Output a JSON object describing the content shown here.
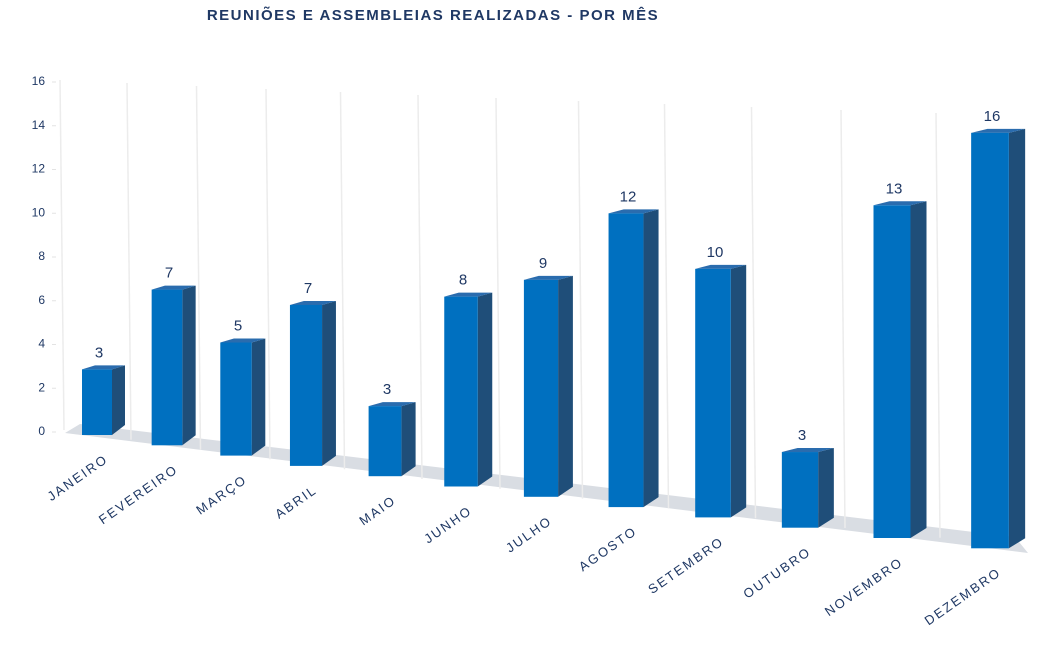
{
  "chart_data": {
    "type": "bar",
    "title": "REUNIÕES E ASSEMBLEIAS REALIZADAS - POR MÊS",
    "categories": [
      "JANEIRO",
      "FEVEREIRO",
      "MARÇO",
      "ABRIL",
      "MAIO",
      "JUNHO",
      "JULHO",
      "AGOSTO",
      "SETEMBRO",
      "OUTUBRO",
      "NOVEMBRO",
      "DEZEMBRO"
    ],
    "values": [
      3,
      7,
      5,
      7,
      3,
      8,
      9,
      12,
      10,
      3,
      13,
      16
    ],
    "color": "#0070c0",
    "ylim": [
      0,
      16
    ],
    "yticks": [
      0,
      2,
      4,
      6,
      8,
      10,
      12,
      14,
      16
    ]
  }
}
